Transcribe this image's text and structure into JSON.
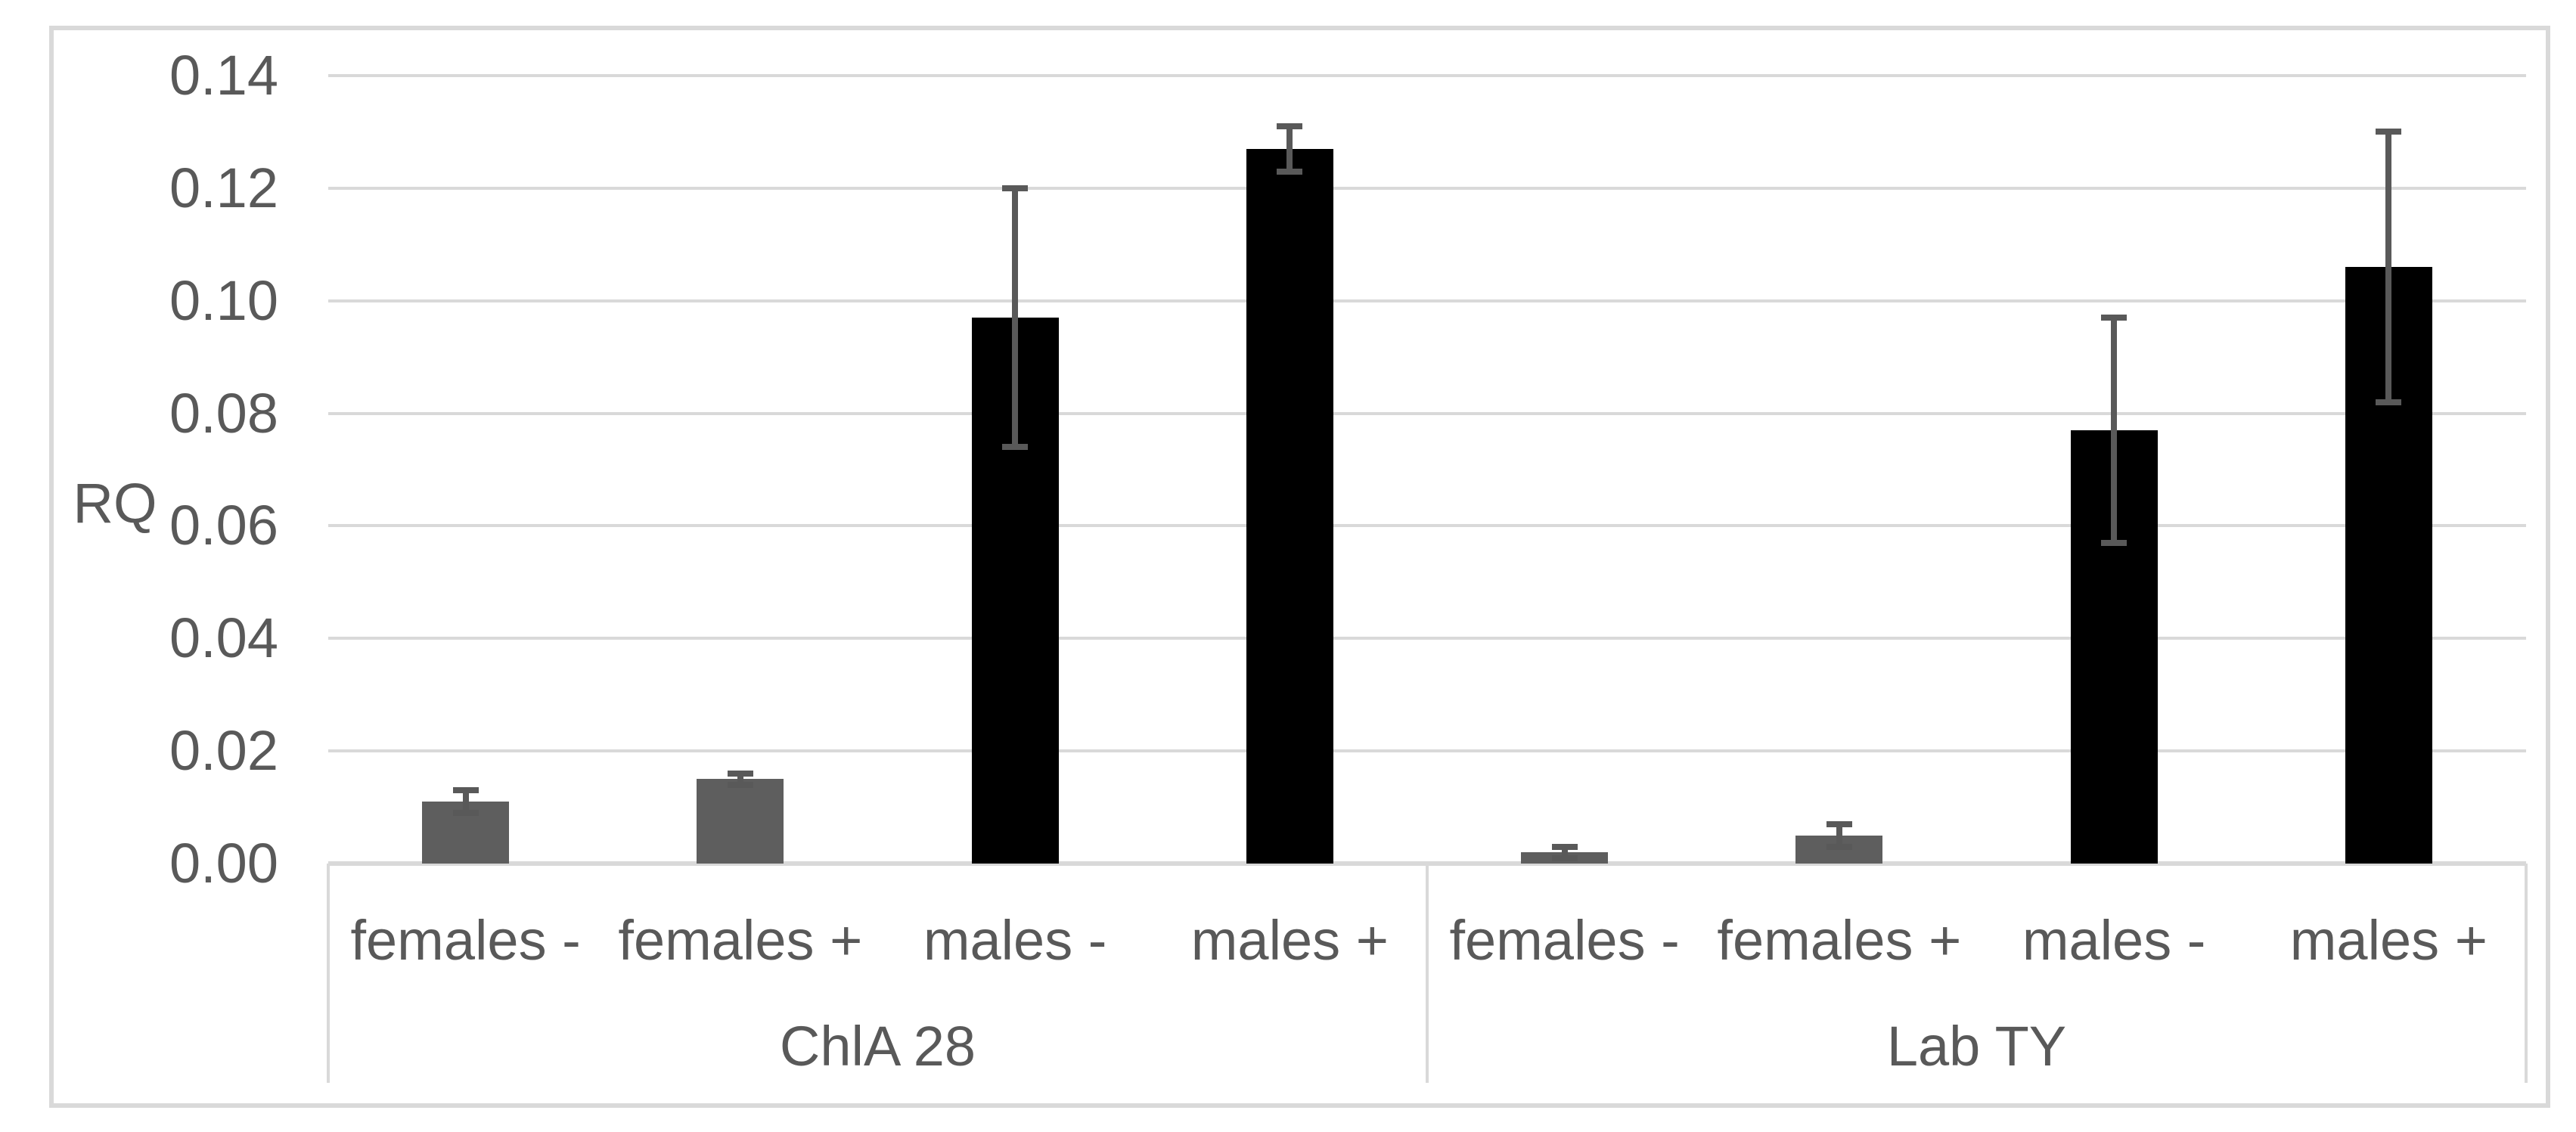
{
  "colors": {
    "female_bar": "#5e5e5e",
    "male_bar": "#000000",
    "error_bar": "#595959",
    "gridline": "#d9d9d9",
    "axis_box": "#d9d9d9",
    "frame": "#d9d9d9",
    "text": "#595959",
    "background": "#ffffff"
  },
  "chart_data": {
    "type": "bar",
    "ylabel": "RQ",
    "ylim": [
      0.0,
      0.14
    ],
    "ytick_interval": 0.02,
    "ytick_labels": [
      "0.00",
      "0.02",
      "0.04",
      "0.06",
      "0.08",
      "0.10",
      "0.12",
      "0.14"
    ],
    "grid": true,
    "legend": "none",
    "groups": [
      "ChlA 28",
      "Lab TY"
    ],
    "categories": [
      "females -",
      "females +",
      "males -",
      "males +",
      "females -",
      "females +",
      "males -",
      "males +"
    ],
    "series": [
      {
        "group": "ChlA 28",
        "category": "females -",
        "value": 0.011,
        "error": 0.002,
        "color_key": "female_bar"
      },
      {
        "group": "ChlA 28",
        "category": "females +",
        "value": 0.015,
        "error": 0.001,
        "color_key": "female_bar"
      },
      {
        "group": "ChlA 28",
        "category": "males -",
        "value": 0.097,
        "error": 0.023,
        "color_key": "male_bar"
      },
      {
        "group": "ChlA 28",
        "category": "males +",
        "value": 0.127,
        "error": 0.004,
        "color_key": "male_bar"
      },
      {
        "group": "Lab TY",
        "category": "females -",
        "value": 0.002,
        "error": 0.001,
        "color_key": "female_bar"
      },
      {
        "group": "Lab TY",
        "category": "females +",
        "value": 0.005,
        "error": 0.002,
        "color_key": "female_bar"
      },
      {
        "group": "Lab TY",
        "category": "males -",
        "value": 0.077,
        "error": 0.02,
        "color_key": "male_bar"
      },
      {
        "group": "Lab TY",
        "category": "males +",
        "value": 0.106,
        "error": 0.024,
        "color_key": "male_bar"
      }
    ]
  }
}
